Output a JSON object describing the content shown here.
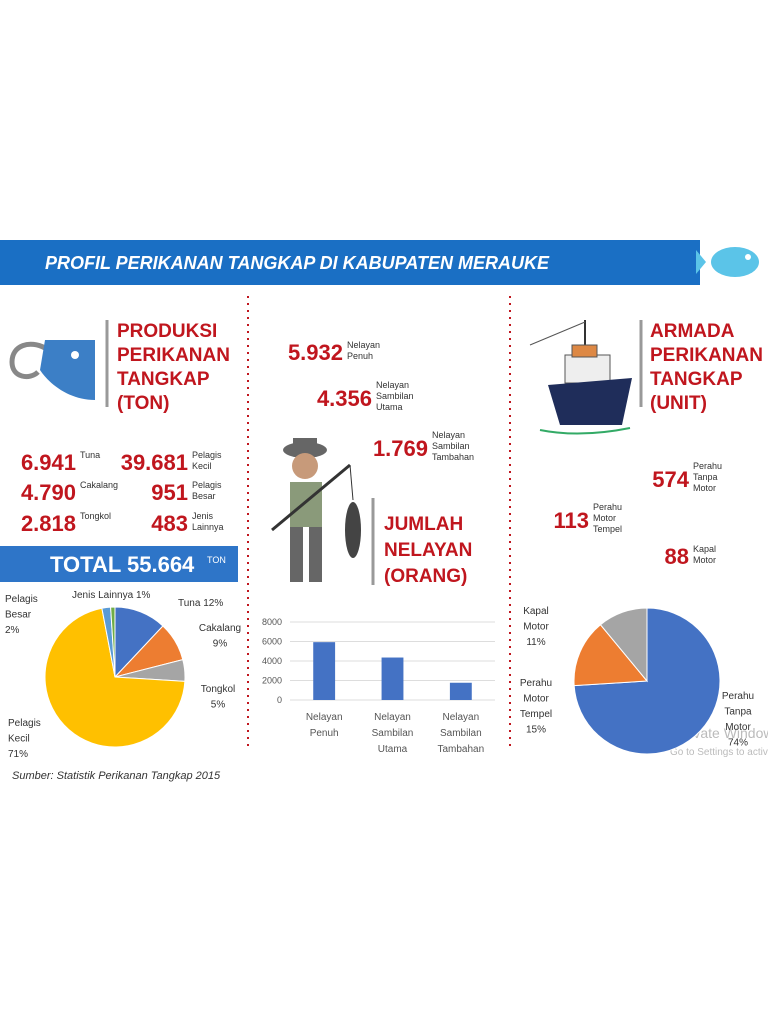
{
  "header": {
    "title": "PROFIL PERIKANAN TANGKAP DI KABUPATEN MERAUKE"
  },
  "production": {
    "heading": [
      "PRODUKSI",
      "PERIKANAN",
      "TANGKAP",
      "(TON)"
    ],
    "items": [
      {
        "value": "6.941",
        "label": [
          "Tuna"
        ]
      },
      {
        "value": "39.681",
        "label": [
          "Pelagis",
          "Kecil"
        ]
      },
      {
        "value": "4.790",
        "label": [
          "Cakalang"
        ]
      },
      {
        "value": "951",
        "label": [
          "Pelagis",
          "Besar"
        ]
      },
      {
        "value": "2.818",
        "label": [
          "Tongkol"
        ]
      },
      {
        "value": "483",
        "label": [
          "Jenis",
          "Lainnya"
        ]
      }
    ],
    "total": "TOTAL 55.664",
    "total_unit": "TON"
  },
  "fishermen": {
    "heading": [
      "JUMLAH",
      "NELAYAN",
      "(ORANG)"
    ],
    "items": [
      {
        "value": "5.932",
        "label": [
          "Nelayan",
          "Penuh"
        ]
      },
      {
        "value": "4.356",
        "label": [
          "Nelayan",
          "Sambilan",
          "Utama"
        ]
      },
      {
        "value": "1.769",
        "label": [
          "Nelayan",
          "Sambilan",
          "Tambahan"
        ]
      }
    ]
  },
  "fleet": {
    "heading": [
      "ARMADA",
      "PERIKANAN",
      "TANGKAP",
      "(UNIT)"
    ],
    "items": [
      {
        "value": "574",
        "label": [
          "Perahu",
          "Tanpa",
          "Motor"
        ]
      },
      {
        "value": "113",
        "label": [
          "Perahu",
          "Motor",
          "Tempel"
        ]
      },
      {
        "value": "88",
        "label": [
          "Kapal",
          "Motor"
        ]
      }
    ]
  },
  "source": "Sumber: Statistik Perikanan Tangkap 2015",
  "watermark": [
    "Activate Windows",
    "Go to Settings to activate Windows."
  ],
  "chart_data": [
    {
      "type": "pie",
      "categories": [
        "Tuna",
        "Cakalang",
        "Tongkol",
        "Pelagis Kecil",
        "Pelagis Besar",
        "Jenis Lainnya"
      ],
      "values": [
        12,
        9,
        5,
        71,
        2,
        1
      ],
      "value_labels": [
        "12%",
        "9%",
        "5%",
        "71%",
        "2%",
        "1%"
      ],
      "colors": [
        "#4472c4",
        "#ed7d31",
        "#a5a5a5",
        "#ffc000",
        "#5b9bd5",
        "#70ad47"
      ]
    },
    {
      "type": "bar",
      "categories": [
        "Nelayan Penuh",
        "Nelayan Sambilan Utama",
        "Nelayan Sambilan Tambahan"
      ],
      "values": [
        5932,
        4356,
        1769
      ],
      "color": "#4472c4",
      "ylim": [
        0,
        8000
      ],
      "yticks": [
        0,
        2000,
        4000,
        6000,
        8000
      ],
      "grid": true
    },
    {
      "type": "pie",
      "categories": [
        "Perahu Tanpa Motor",
        "Perahu Motor Tempel",
        "Kapal Motor"
      ],
      "values": [
        74,
        15,
        11
      ],
      "value_labels": [
        "74%",
        "15%",
        "11%"
      ],
      "colors": [
        "#4472c4",
        "#ed7d31",
        "#a5a5a5"
      ]
    }
  ]
}
